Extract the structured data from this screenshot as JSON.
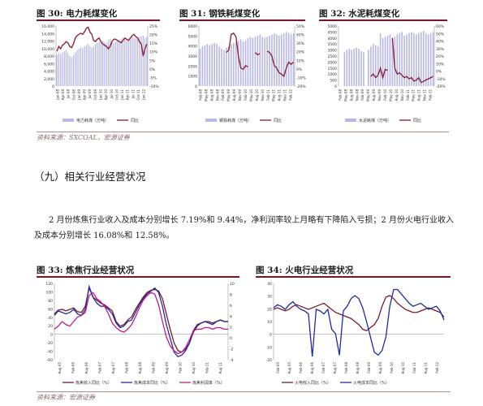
{
  "top_figures": [
    {
      "title": "图 30:  电力耗煤变化",
      "left_ticks": [
        "16,000",
        "14,000",
        "12,000",
        "10,000",
        "8,000",
        "6,000",
        "4,000",
        "2,000",
        "0"
      ],
      "right_ticks": [
        "25%",
        "20%",
        "15%",
        "10%",
        "5%",
        "0%",
        "-5%",
        "-10%"
      ],
      "x_labels": [
        "Jan-08",
        "Apr-08",
        "Jul-08",
        "Oct-08",
        "Jan-09",
        "Apr-09",
        "Jul-09",
        "Oct-09",
        "Jan-10",
        "Apr-10",
        "Jul-10",
        "Oct-10",
        "Jan-11",
        "Apr-11",
        "Jul-11",
        "Oct-11",
        "Jan-12"
      ],
      "legend": [
        "电力耗煤（万吨）",
        "同比"
      ]
    },
    {
      "title": "图 31:  钢铁耗煤变化",
      "left_ticks": [
        "6000",
        "5000",
        "4000",
        "3000",
        "2000",
        "1000",
        "0"
      ],
      "right_ticks": [
        "50%",
        "40%",
        "30%",
        "20%",
        "10%",
        "0%",
        "-10%",
        "-20%"
      ],
      "x_labels": [
        "Feb-08",
        "May-08",
        "Aug-08",
        "Nov-08",
        "Feb-09",
        "May-09",
        "Aug-09",
        "Nov-09",
        "Feb-10",
        "May-10",
        "Aug-10",
        "Nov-10",
        "Feb-11",
        "May-11",
        "Aug-11",
        "Nov-11",
        "Feb-12"
      ],
      "legend": [
        "钢铁耗煤（万吨）",
        "同比"
      ]
    },
    {
      "title": "图 32:  水泥耗煤变化",
      "left_ticks": [
        "5000",
        "4500",
        "4000",
        "3500",
        "3000",
        "2500",
        "2000",
        "1500",
        "1000",
        "500",
        "0"
      ],
      "right_ticks": [
        "60%",
        "50%",
        "40%",
        "30%",
        "20%",
        "10%",
        "0%",
        "-10%",
        "-20%"
      ],
      "x_labels": [
        "Feb-08",
        "May-08",
        "Aug-08",
        "Nov-08",
        "Feb-09",
        "May-09",
        "Aug-09",
        "Nov-09",
        "Feb-10",
        "May-10",
        "Aug-10",
        "Nov-10",
        "Feb-11",
        "May-11",
        "Aug-11",
        "Nov-11",
        "Feb-12"
      ],
      "legend": [
        "水泥耗煤（万吨）",
        "同比"
      ]
    }
  ],
  "top_source": "资料来源：SXCOAL，宏源证券",
  "section_heading": "（九）相关行业经营状况",
  "paragraph": "2 月份炼焦行业收入及成本分别增长 7.19%和 9.44%，净利润率较上月略有下降陷入亏损；2 月份火电行业收入及成本分别增长 16.08%和 12.58%。",
  "bottom_figures": [
    {
      "title": "图 33:  炼焦行业经营状况",
      "left_ticks": [
        "120",
        "100",
        "80",
        "60",
        "40",
        "20",
        "0",
        "-20",
        "-40",
        "-60"
      ],
      "right_ticks": [
        "10",
        "8",
        "6",
        "4",
        "2",
        "0",
        "-2",
        "-4"
      ],
      "x_labels": [
        "Aug-05",
        "Feb-06",
        "Aug-06",
        "Feb-07",
        "Aug-07",
        "Feb-08",
        "Aug-08",
        "Feb-09",
        "Aug-09",
        "Feb-10",
        "Aug-10",
        "Feb-11",
        "Aug-11"
      ],
      "legend": [
        "炼焦收入同比（%）",
        "炼焦成本同比（%）",
        "炼焦利润率（%）"
      ],
      "colors": [
        "#7a1a2a",
        "#1f2aa0",
        "#c2188c"
      ]
    },
    {
      "title": "图 34:  火电行业经营状况",
      "left_ticks": [
        "40",
        "30",
        "20",
        "10",
        "0",
        "-10",
        "-20"
      ],
      "right_ticks": [],
      "x_labels": [
        "Feb-05",
        "Aug-05",
        "Feb-06",
        "Aug-06",
        "Feb-07",
        "Aug-07",
        "Feb-08",
        "Aug-08",
        "Feb-09",
        "Aug-09",
        "Feb-10",
        "Aug-10",
        "Feb-11",
        "Aug-11",
        "Feb-12"
      ],
      "legend": [
        "火电收入同比（%）",
        "火电成本同比（%）"
      ],
      "colors": [
        "#7a1a2a",
        "#1f2aa0"
      ]
    }
  ],
  "bottom_source": "资料来源：宏源证券",
  "colors": {
    "accent": "#7a1522",
    "bar": "#b8b8e8",
    "line": "#8b1a2a"
  }
}
